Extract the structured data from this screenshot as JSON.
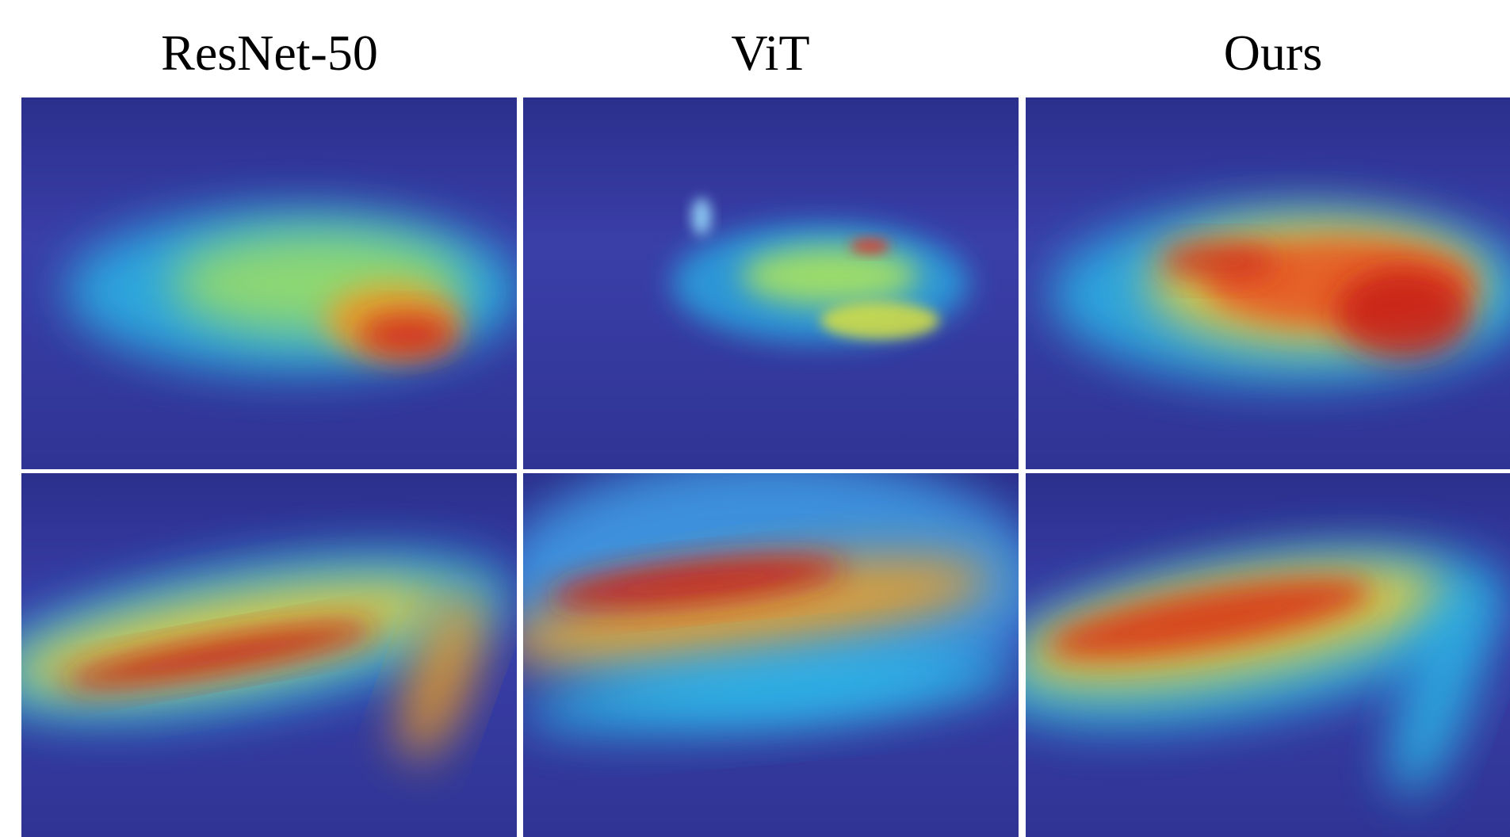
{
  "columns": [
    {
      "title": "ResNet-50"
    },
    {
      "title": "ViT"
    },
    {
      "title": "Ours"
    }
  ]
}
